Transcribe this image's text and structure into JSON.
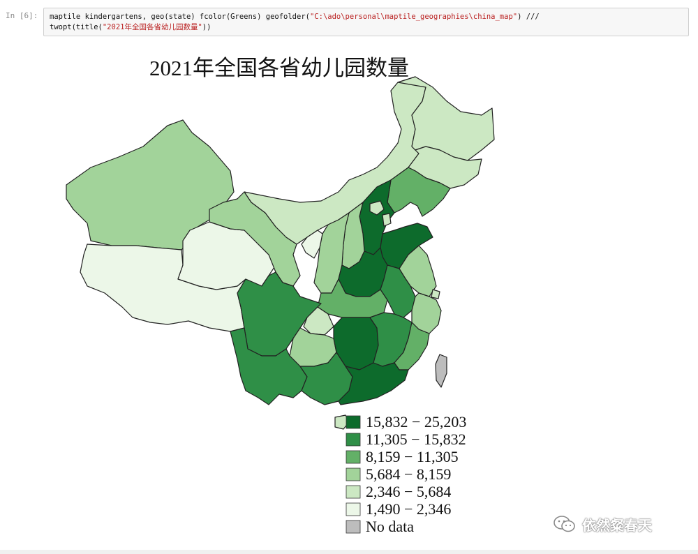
{
  "cell": {
    "prompt": "In [6]:",
    "code_line1_prefix": "maptile kindergartens, geo(state) fcolor(Greens) geofolder(",
    "code_line1_string": "\"C:\\ado\\personal\\maptile_geographies\\china_map\"",
    "code_line1_suffix": ") ///",
    "code_line2_prefix": "twopt(title(",
    "code_line2_string": "\"2021年全国各省幼儿园数量\"",
    "code_line2_suffix": "))"
  },
  "chart_data": {
    "type": "choropleth",
    "title": "2021年全国各省幼儿园数量",
    "color_scheme": "Greens",
    "legend": [
      {
        "label": "15,832 − 25,203",
        "color": "#0d6b2c"
      },
      {
        "label": "11,305 − 15,832",
        "color": "#2f8f47"
      },
      {
        "label": "8,159 − 11,305",
        "color": "#63b067"
      },
      {
        "label": "5,684 − 8,159",
        "color": "#a2d39a"
      },
      {
        "label": "2,346 − 5,684",
        "color": "#cce8c3"
      },
      {
        "label": "1,490 − 2,346",
        "color": "#ecf7e8"
      },
      {
        "label": "No data",
        "color": "#bdbdbd"
      }
    ]
  },
  "watermark": {
    "text": "依然粲春天",
    "icon": "wechat-icon"
  }
}
